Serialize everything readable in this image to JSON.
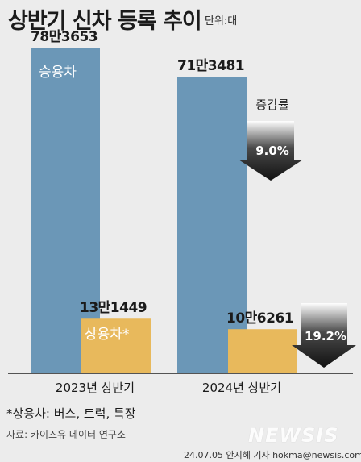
{
  "title": "상반기 신차 등록 추이",
  "unit": "단위:대",
  "chart_data": {
    "type": "bar",
    "categories": [
      "2023년 상반기",
      "2024년 상반기"
    ],
    "series": [
      {
        "name": "승용차",
        "values": [
          783653,
          713481
        ],
        "labels": [
          "78만3653",
          "71만3481"
        ],
        "color": "#6b97b7"
      },
      {
        "name": "상용차*",
        "values": [
          131449,
          106261
        ],
        "labels": [
          "13만1449",
          "10만6261"
        ],
        "color": "#e8b95c"
      }
    ],
    "changes": [
      {
        "series": "승용차",
        "value": "9.0%"
      },
      {
        "series": "상용차*",
        "value": "19.2%"
      }
    ],
    "change_label": "증감률",
    "grid": false
  },
  "footnote": "*상용차: 버스, 트럭, 특장",
  "source": "자료: 카이즈유 데이터 연구소",
  "credit": "24.07.05 안지혜 기자 hokma@newsis.com",
  "watermark": "NEWSIS"
}
